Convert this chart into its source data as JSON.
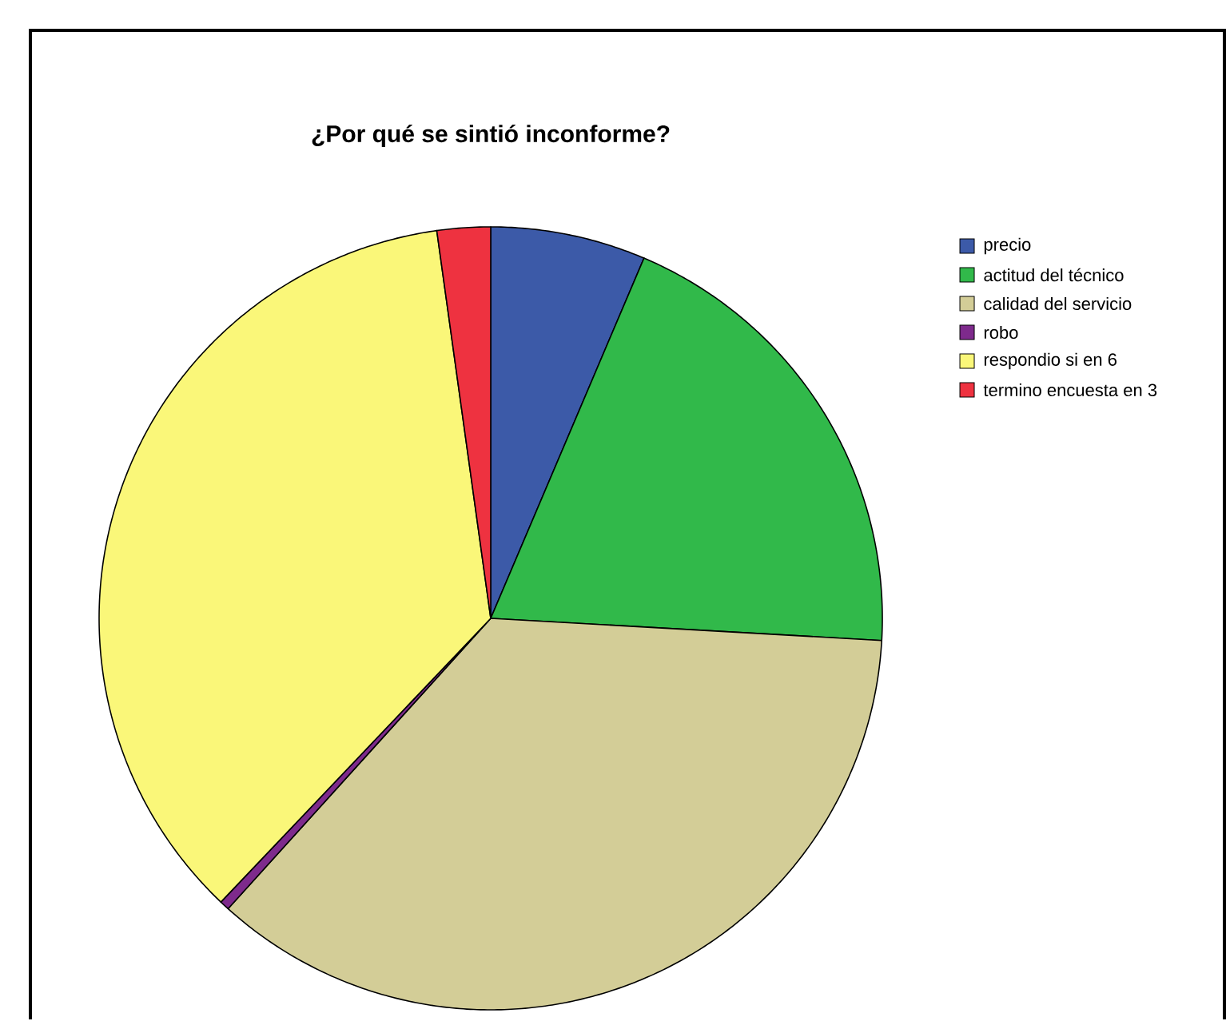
{
  "chart_data": {
    "type": "pie",
    "title": "¿Por qué se sintió inconforme?",
    "categories": [
      "precio",
      "actitud del técnico",
      "calidad del servicio",
      "robo",
      "respondio si en 6",
      "termino encuesta en 3"
    ],
    "values": [
      6.4,
      19.5,
      35.8,
      0.4,
      35.7,
      2.2
    ],
    "colors": [
      "#3c5aa8",
      "#31b94a",
      "#d3cd97",
      "#7e2a8c",
      "#faf779",
      "#ee3240"
    ],
    "legend": "right"
  }
}
